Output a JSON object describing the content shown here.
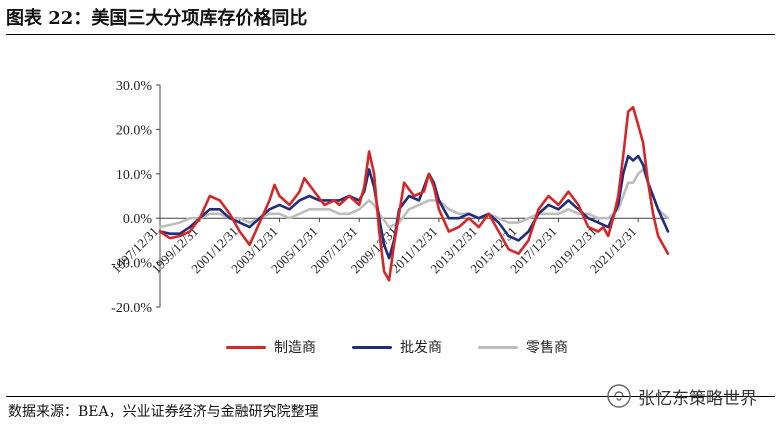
{
  "header": {
    "title": "图表 22：美国三大分项库存价格同比"
  },
  "source": "数据来源：BEA，兴业证券经济与金融研究院整理",
  "watermark": "张忆东策略世界",
  "colors": {
    "manufacturing": "#d62728",
    "wholesale": "#1f2d7a",
    "retail": "#bdbdbd"
  },
  "chart_data": {
    "type": "line",
    "title": "图表 22：美国三大分项库存价格同比",
    "ylim": [
      -20,
      30
    ],
    "yticks": [
      "30.0%",
      "20.0%",
      "10.0%",
      "0.0%",
      "-10.0%",
      "-20.0%"
    ],
    "xlim": [
      "1997/12/31",
      "2023/06/30"
    ],
    "xticks": [
      "1997/12/31",
      "1999/12/31",
      "2001/12/31",
      "2003/12/31",
      "2005/12/31",
      "2007/12/31",
      "2009/12/31",
      "2011/12/31",
      "2013/12/31",
      "2015/12/31",
      "2017/12/31",
      "2019/12/31",
      "2021/12/31"
    ],
    "grid": false,
    "legend": "bottom",
    "series": [
      {
        "name": "制造商",
        "points": [
          [
            "1997/12/31",
            -3
          ],
          [
            "1998/06/30",
            -4.5
          ],
          [
            "1998/12/31",
            -4
          ],
          [
            "1999/06/30",
            -3
          ],
          [
            "1999/12/31",
            0
          ],
          [
            "2000/06/30",
            5
          ],
          [
            "2000/12/31",
            4
          ],
          [
            "2001/06/30",
            1
          ],
          [
            "2001/12/31",
            -3
          ],
          [
            "2002/06/30",
            -6
          ],
          [
            "2002/12/31",
            -1
          ],
          [
            "2003/06/30",
            4
          ],
          [
            "2003/09/30",
            7.5
          ],
          [
            "2003/12/31",
            5
          ],
          [
            "2004/06/30",
            3
          ],
          [
            "2004/12/31",
            6
          ],
          [
            "2005/03/31",
            9
          ],
          [
            "2005/09/30",
            6
          ],
          [
            "2006/03/31",
            3
          ],
          [
            "2006/09/30",
            4
          ],
          [
            "2006/12/31",
            3
          ],
          [
            "2007/06/30",
            5
          ],
          [
            "2007/12/31",
            3
          ],
          [
            "2008/03/31",
            7
          ],
          [
            "2008/06/30",
            15
          ],
          [
            "2008/09/30",
            10
          ],
          [
            "2008/12/31",
            -3
          ],
          [
            "2009/03/31",
            -12
          ],
          [
            "2009/06/30",
            -14
          ],
          [
            "2009/09/30",
            -6
          ],
          [
            "2009/12/31",
            1
          ],
          [
            "2010/03/31",
            8
          ],
          [
            "2010/09/30",
            5
          ],
          [
            "2011/03/31",
            6
          ],
          [
            "2011/06/30",
            10
          ],
          [
            "2011/09/30",
            7
          ],
          [
            "2011/12/31",
            2
          ],
          [
            "2012/06/30",
            -3
          ],
          [
            "2012/12/31",
            -2
          ],
          [
            "2013/06/30",
            0
          ],
          [
            "2013/12/31",
            -2
          ],
          [
            "2014/06/30",
            1
          ],
          [
            "2014/12/31",
            -3
          ],
          [
            "2015/06/30",
            -7
          ],
          [
            "2015/12/31",
            -8
          ],
          [
            "2016/06/30",
            -5
          ],
          [
            "2016/12/31",
            2
          ],
          [
            "2017/06/30",
            5
          ],
          [
            "2017/12/31",
            3
          ],
          [
            "2018/06/30",
            6
          ],
          [
            "2018/12/31",
            3
          ],
          [
            "2019/06/30",
            -2
          ],
          [
            "2019/12/31",
            -3
          ],
          [
            "2020/03/31",
            -2
          ],
          [
            "2020/06/30",
            -4
          ],
          [
            "2020/09/30",
            0
          ],
          [
            "2020/12/31",
            5
          ],
          [
            "2021/03/31",
            14
          ],
          [
            "2021/06/30",
            24
          ],
          [
            "2021/09/30",
            25
          ],
          [
            "2021/12/31",
            21
          ],
          [
            "2022/03/31",
            17
          ],
          [
            "2022/06/30",
            8
          ],
          [
            "2022/09/30",
            1
          ],
          [
            "2022/12/31",
            -4
          ],
          [
            "2023/06/30",
            -8
          ]
        ]
      },
      {
        "name": "批发商",
        "points": [
          [
            "1997/12/31",
            -3
          ],
          [
            "1998/06/30",
            -3.5
          ],
          [
            "1998/12/31",
            -3.5
          ],
          [
            "1999/06/30",
            -2
          ],
          [
            "1999/12/31",
            0
          ],
          [
            "2000/06/30",
            2
          ],
          [
            "2000/12/31",
            2
          ],
          [
            "2001/06/30",
            0
          ],
          [
            "2001/12/31",
            -1
          ],
          [
            "2002/06/30",
            -2
          ],
          [
            "2002/12/31",
            0
          ],
          [
            "2003/06/30",
            2
          ],
          [
            "2003/12/31",
            3
          ],
          [
            "2004/06/30",
            2
          ],
          [
            "2004/12/31",
            4
          ],
          [
            "2005/06/30",
            5
          ],
          [
            "2005/12/31",
            4
          ],
          [
            "2006/06/30",
            4
          ],
          [
            "2006/12/31",
            4
          ],
          [
            "2007/06/30",
            5
          ],
          [
            "2007/12/31",
            4
          ],
          [
            "2008/03/31",
            6
          ],
          [
            "2008/06/30",
            11
          ],
          [
            "2008/09/30",
            7
          ],
          [
            "2008/12/31",
            0
          ],
          [
            "2009/03/31",
            -6
          ],
          [
            "2009/06/30",
            -9
          ],
          [
            "2009/09/30",
            -5
          ],
          [
            "2009/12/31",
            2
          ],
          [
            "2010/06/30",
            5
          ],
          [
            "2010/12/31",
            4
          ],
          [
            "2011/03/31",
            7
          ],
          [
            "2011/06/30",
            10
          ],
          [
            "2011/09/30",
            8
          ],
          [
            "2011/12/31",
            4
          ],
          [
            "2012/06/30",
            0
          ],
          [
            "2012/12/31",
            0
          ],
          [
            "2013/06/30",
            1
          ],
          [
            "2013/12/31",
            0
          ],
          [
            "2014/06/30",
            1
          ],
          [
            "2014/12/31",
            -1
          ],
          [
            "2015/06/30",
            -4
          ],
          [
            "2015/12/31",
            -5
          ],
          [
            "2016/06/30",
            -3
          ],
          [
            "2016/12/31",
            1
          ],
          [
            "2017/06/30",
            3
          ],
          [
            "2017/12/31",
            2
          ],
          [
            "2018/06/30",
            4
          ],
          [
            "2018/12/31",
            2
          ],
          [
            "2019/06/30",
            0
          ],
          [
            "2019/12/31",
            -1
          ],
          [
            "2020/06/30",
            -2
          ],
          [
            "2020/12/31",
            3
          ],
          [
            "2021/03/31",
            10
          ],
          [
            "2021/06/30",
            14
          ],
          [
            "2021/09/30",
            13
          ],
          [
            "2021/12/31",
            14
          ],
          [
            "2022/03/31",
            12
          ],
          [
            "2022/06/30",
            8
          ],
          [
            "2022/09/30",
            5
          ],
          [
            "2022/12/31",
            2
          ],
          [
            "2023/06/30",
            -3
          ]
        ]
      },
      {
        "name": "零售商",
        "points": [
          [
            "1997/12/31",
            -2
          ],
          [
            "1998/06/30",
            -1.5
          ],
          [
            "1998/12/31",
            -1
          ],
          [
            "1999/06/30",
            0
          ],
          [
            "1999/12/31",
            0
          ],
          [
            "2000/06/30",
            1
          ],
          [
            "2000/12/31",
            1
          ],
          [
            "2001/06/30",
            0
          ],
          [
            "2001/12/31",
            0
          ],
          [
            "2002/06/30",
            -1
          ],
          [
            "2002/12/31",
            0
          ],
          [
            "2003/06/30",
            1
          ],
          [
            "2003/12/31",
            1
          ],
          [
            "2004/06/30",
            0
          ],
          [
            "2004/12/31",
            1
          ],
          [
            "2005/06/30",
            2
          ],
          [
            "2005/12/31",
            2
          ],
          [
            "2006/06/30",
            2
          ],
          [
            "2006/12/31",
            1
          ],
          [
            "2007/06/30",
            1
          ],
          [
            "2007/12/31",
            2
          ],
          [
            "2008/06/30",
            4
          ],
          [
            "2008/09/30",
            3
          ],
          [
            "2008/12/31",
            1
          ],
          [
            "2009/06/30",
            -2
          ],
          [
            "2009/12/31",
            -1
          ],
          [
            "2010/06/30",
            2
          ],
          [
            "2010/12/31",
            3
          ],
          [
            "2011/06/30",
            4
          ],
          [
            "2011/12/31",
            4
          ],
          [
            "2012/06/30",
            2
          ],
          [
            "2012/12/31",
            1
          ],
          [
            "2013/06/30",
            1
          ],
          [
            "2013/12/31",
            0
          ],
          [
            "2014/06/30",
            1
          ],
          [
            "2014/12/31",
            0
          ],
          [
            "2015/06/30",
            -1
          ],
          [
            "2015/12/31",
            -1
          ],
          [
            "2016/06/30",
            0
          ],
          [
            "2016/12/31",
            1
          ],
          [
            "2017/06/30",
            1
          ],
          [
            "2017/12/31",
            1
          ],
          [
            "2018/06/30",
            2
          ],
          [
            "2018/12/31",
            1
          ],
          [
            "2019/06/30",
            1
          ],
          [
            "2019/12/31",
            0
          ],
          [
            "2020/06/30",
            0
          ],
          [
            "2020/12/31",
            2
          ],
          [
            "2021/03/31",
            5
          ],
          [
            "2021/06/30",
            8
          ],
          [
            "2021/09/30",
            8
          ],
          [
            "2021/12/31",
            10
          ],
          [
            "2022/03/31",
            11
          ],
          [
            "2022/06/30",
            8
          ],
          [
            "2022/09/30",
            5
          ],
          [
            "2022/12/31",
            2
          ],
          [
            "2023/06/30",
            0
          ]
        ]
      }
    ]
  }
}
